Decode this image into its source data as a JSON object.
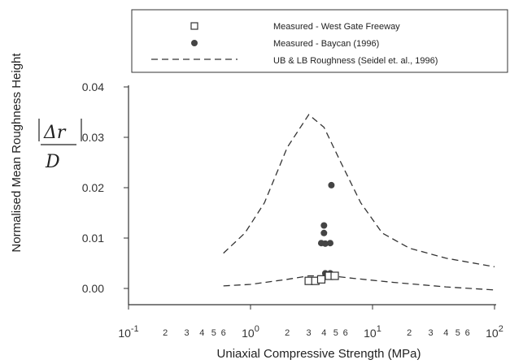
{
  "chart_data": {
    "type": "scatter",
    "xscale": "log",
    "xlim": [
      0.1,
      100
    ],
    "ylim": [
      0.0,
      0.04
    ],
    "xlabel": "Uniaxial Compressive Strength (MPa)",
    "ylabel": "Normalised Mean Roughness Height",
    "ylabel_fraction": {
      "numerator": "Δr",
      "denominator": "D"
    },
    "y_ticks": [
      "0.00",
      "0.01",
      "0.02",
      "0.03",
      "0.04"
    ],
    "x_ticks_major": [
      {
        "base": "10",
        "exp": "-1",
        "value": 0.1
      },
      {
        "base": "10",
        "exp": "0",
        "value": 1
      },
      {
        "base": "10",
        "exp": "1",
        "value": 10
      },
      {
        "base": "10",
        "exp": "2",
        "value": 100
      }
    ],
    "x_ticks_minor": [
      {
        "label": "2",
        "value": 0.2
      },
      {
        "label": "3",
        "value": 0.3
      },
      {
        "label": "4",
        "value": 0.4
      },
      {
        "label": "5",
        "value": 0.5
      },
      {
        "label": "6",
        "value": 0.6
      },
      {
        "label": "2",
        "value": 2
      },
      {
        "label": "3",
        "value": 3
      },
      {
        "label": "4",
        "value": 4
      },
      {
        "label": "5",
        "value": 5
      },
      {
        "label": "6",
        "value": 6
      },
      {
        "label": "2",
        "value": 20
      },
      {
        "label": "3",
        "value": 30
      },
      {
        "label": "4",
        "value": 40
      },
      {
        "label": "5",
        "value": 50
      },
      {
        "label": "6",
        "value": 60
      }
    ],
    "legend": {
      "placement": "top",
      "entries": [
        {
          "label": "Measured - West Gate Freeway",
          "marker": "open-square"
        },
        {
          "label": "Measured - Baycan (1996)",
          "marker": "filled-circle"
        },
        {
          "label": "UB & LB Roughness (Seidel et. al., 1996)",
          "marker": "dashed-line"
        }
      ]
    },
    "series": [
      {
        "name": "Measured - West Gate Freeway",
        "marker": "open-square",
        "points": [
          {
            "x": 3.0,
            "y": 0.0015
          },
          {
            "x": 3.4,
            "y": 0.0015
          },
          {
            "x": 3.8,
            "y": 0.0018
          },
          {
            "x": 4.4,
            "y": 0.0025
          },
          {
            "x": 4.9,
            "y": 0.0025
          }
        ]
      },
      {
        "name": "Measured - Baycan (1996)",
        "marker": "filled-circle",
        "points": [
          {
            "x": 4.6,
            "y": 0.0205
          },
          {
            "x": 4.0,
            "y": 0.0125
          },
          {
            "x": 4.0,
            "y": 0.011
          },
          {
            "x": 3.8,
            "y": 0.009
          },
          {
            "x": 4.1,
            "y": 0.0089
          },
          {
            "x": 4.5,
            "y": 0.009
          },
          {
            "x": 4.1,
            "y": 0.003
          },
          {
            "x": 4.5,
            "y": 0.003
          }
        ]
      },
      {
        "name": "UB & LB Roughness (Seidel et. al., 1996)",
        "type": "line",
        "style": "dashed",
        "curves": [
          {
            "points": [
              {
                "x": 0.6,
                "y": 0.007
              },
              {
                "x": 0.9,
                "y": 0.011
              },
              {
                "x": 1.3,
                "y": 0.017
              },
              {
                "x": 2.0,
                "y": 0.028
              },
              {
                "x": 3.0,
                "y": 0.0345
              },
              {
                "x": 4.0,
                "y": 0.032
              },
              {
                "x": 5.5,
                "y": 0.025
              },
              {
                "x": 8.0,
                "y": 0.017
              },
              {
                "x": 12,
                "y": 0.011
              },
              {
                "x": 20,
                "y": 0.008
              },
              {
                "x": 40,
                "y": 0.006
              },
              {
                "x": 100,
                "y": 0.0043
              }
            ]
          },
          {
            "points": [
              {
                "x": 0.6,
                "y": 0.0005
              },
              {
                "x": 1.0,
                "y": 0.0008
              },
              {
                "x": 2.0,
                "y": 0.0018
              },
              {
                "x": 3.0,
                "y": 0.0025
              },
              {
                "x": 4.5,
                "y": 0.0025
              },
              {
                "x": 7.0,
                "y": 0.002
              },
              {
                "x": 15,
                "y": 0.0012
              },
              {
                "x": 40,
                "y": 0.0003
              },
              {
                "x": 100,
                "y": -0.0003
              }
            ]
          }
        ]
      }
    ]
  }
}
